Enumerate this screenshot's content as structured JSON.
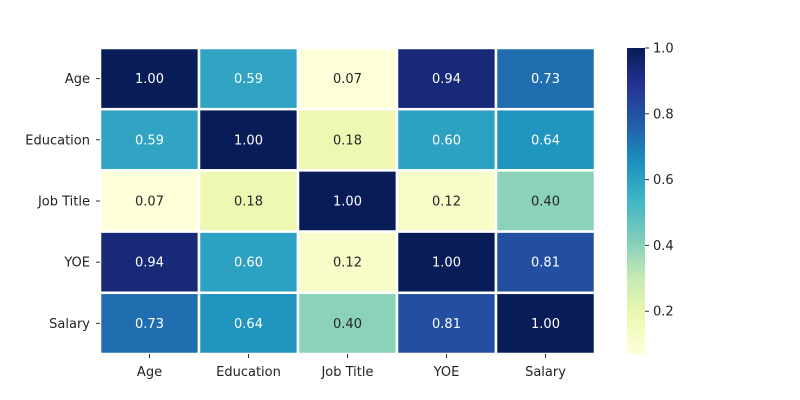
{
  "chart_data": {
    "type": "heatmap",
    "title": "",
    "xlabel": "",
    "ylabel": "",
    "x_categories": [
      "Age",
      "Education",
      "Job Title",
      "YOE",
      "Salary"
    ],
    "y_categories": [
      "Age",
      "Education",
      "Job Title",
      "YOE",
      "Salary"
    ],
    "values": [
      [
        1.0,
        0.59,
        0.07,
        0.94,
        0.73
      ],
      [
        0.59,
        1.0,
        0.18,
        0.6,
        0.64
      ],
      [
        0.07,
        0.18,
        1.0,
        0.12,
        0.4
      ],
      [
        0.94,
        0.6,
        0.12,
        1.0,
        0.81
      ],
      [
        0.73,
        0.64,
        0.4,
        0.81,
        1.0
      ]
    ],
    "cell_labels": [
      [
        "1.00",
        "0.59",
        "0.07",
        "0.94",
        "0.73"
      ],
      [
        "0.59",
        "1.00",
        "0.18",
        "0.60",
        "0.64"
      ],
      [
        "0.07",
        "0.18",
        "1.00",
        "0.12",
        "0.40"
      ],
      [
        "0.94",
        "0.60",
        "0.12",
        "1.00",
        "0.81"
      ],
      [
        "0.73",
        "0.64",
        "0.40",
        "0.81",
        "1.00"
      ]
    ],
    "colormap": "YlGnBu",
    "colorbar": {
      "range": [
        0.07,
        1.0
      ],
      "ticks": [
        0.2,
        0.4,
        0.6,
        0.8,
        1.0
      ],
      "tick_labels": [
        "0.2",
        "0.4",
        "0.6",
        "0.8",
        "1.0"
      ]
    },
    "grid": false,
    "legend": "right"
  }
}
